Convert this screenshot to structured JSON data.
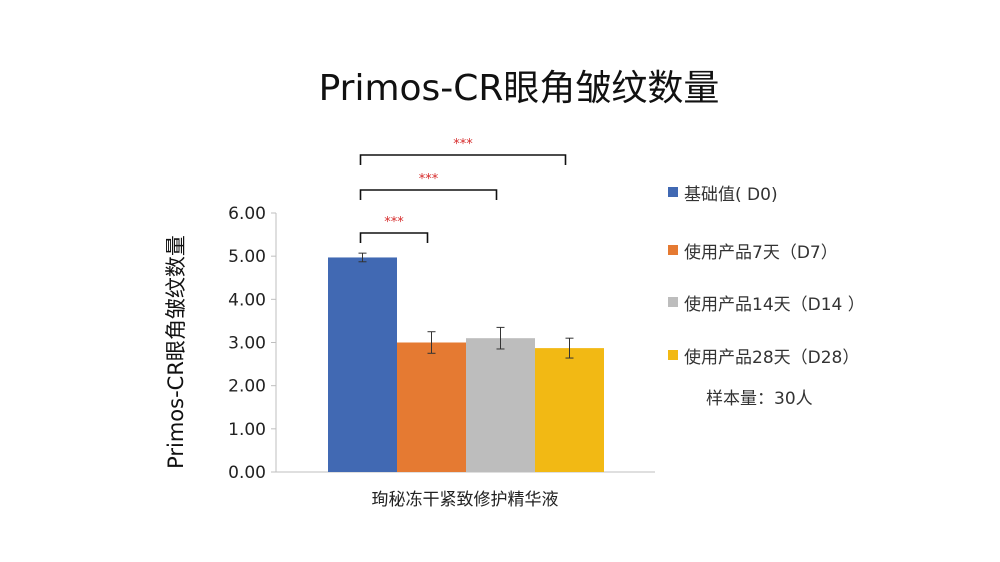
{
  "chart_data": {
    "type": "bar",
    "title": "Primos-CR眼角皱纹数量",
    "ylabel": "Primos-CR眼角皱纹数量",
    "xlabel": "",
    "categories": [
      "珣秘冻干紧致修护精华液"
    ],
    "ylim": [
      0,
      6
    ],
    "yticks": [
      "0.00",
      "1.00",
      "2.00",
      "3.00",
      "4.00",
      "5.00",
      "6.00"
    ],
    "series": [
      {
        "name": "基础值( D0)",
        "values": [
          4.97
        ],
        "error": [
          0.1
        ],
        "color": "#4169b3"
      },
      {
        "name": "使用产品7天（D7）",
        "values": [
          3.0
        ],
        "error": [
          0.25
        ],
        "color": "#e57a32"
      },
      {
        "name": "使用产品14天（D14 ）",
        "values": [
          3.1
        ],
        "error": [
          0.25
        ],
        "color": "#bdbdbd"
      },
      {
        "name": "使用产品28天（D28）",
        "values": [
          2.87
        ],
        "error": [
          0.23
        ],
        "color": "#f2b914"
      }
    ],
    "significance": [
      {
        "from": 0,
        "to": 1,
        "label": "***"
      },
      {
        "from": 0,
        "to": 2,
        "label": "***"
      },
      {
        "from": 0,
        "to": 3,
        "label": "***"
      }
    ],
    "legend_position": "right",
    "grid": false,
    "note": "样本量：30人"
  }
}
